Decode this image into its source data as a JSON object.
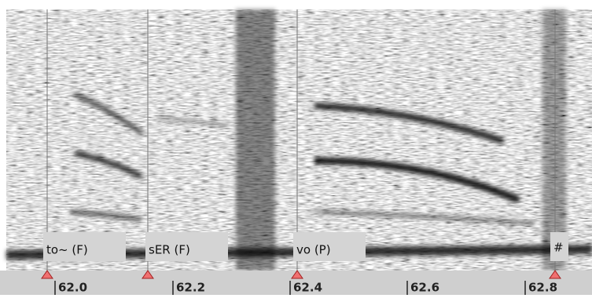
{
  "segments": [
    {
      "label": "to~ (F)"
    },
    {
      "label": "sER (F)"
    },
    {
      "label": "vo (P)"
    },
    {
      "label": "#"
    }
  ],
  "time_axis": {
    "ticks": [
      "62.0",
      "62.2",
      "62.4",
      "62.6",
      "62.8"
    ]
  }
}
